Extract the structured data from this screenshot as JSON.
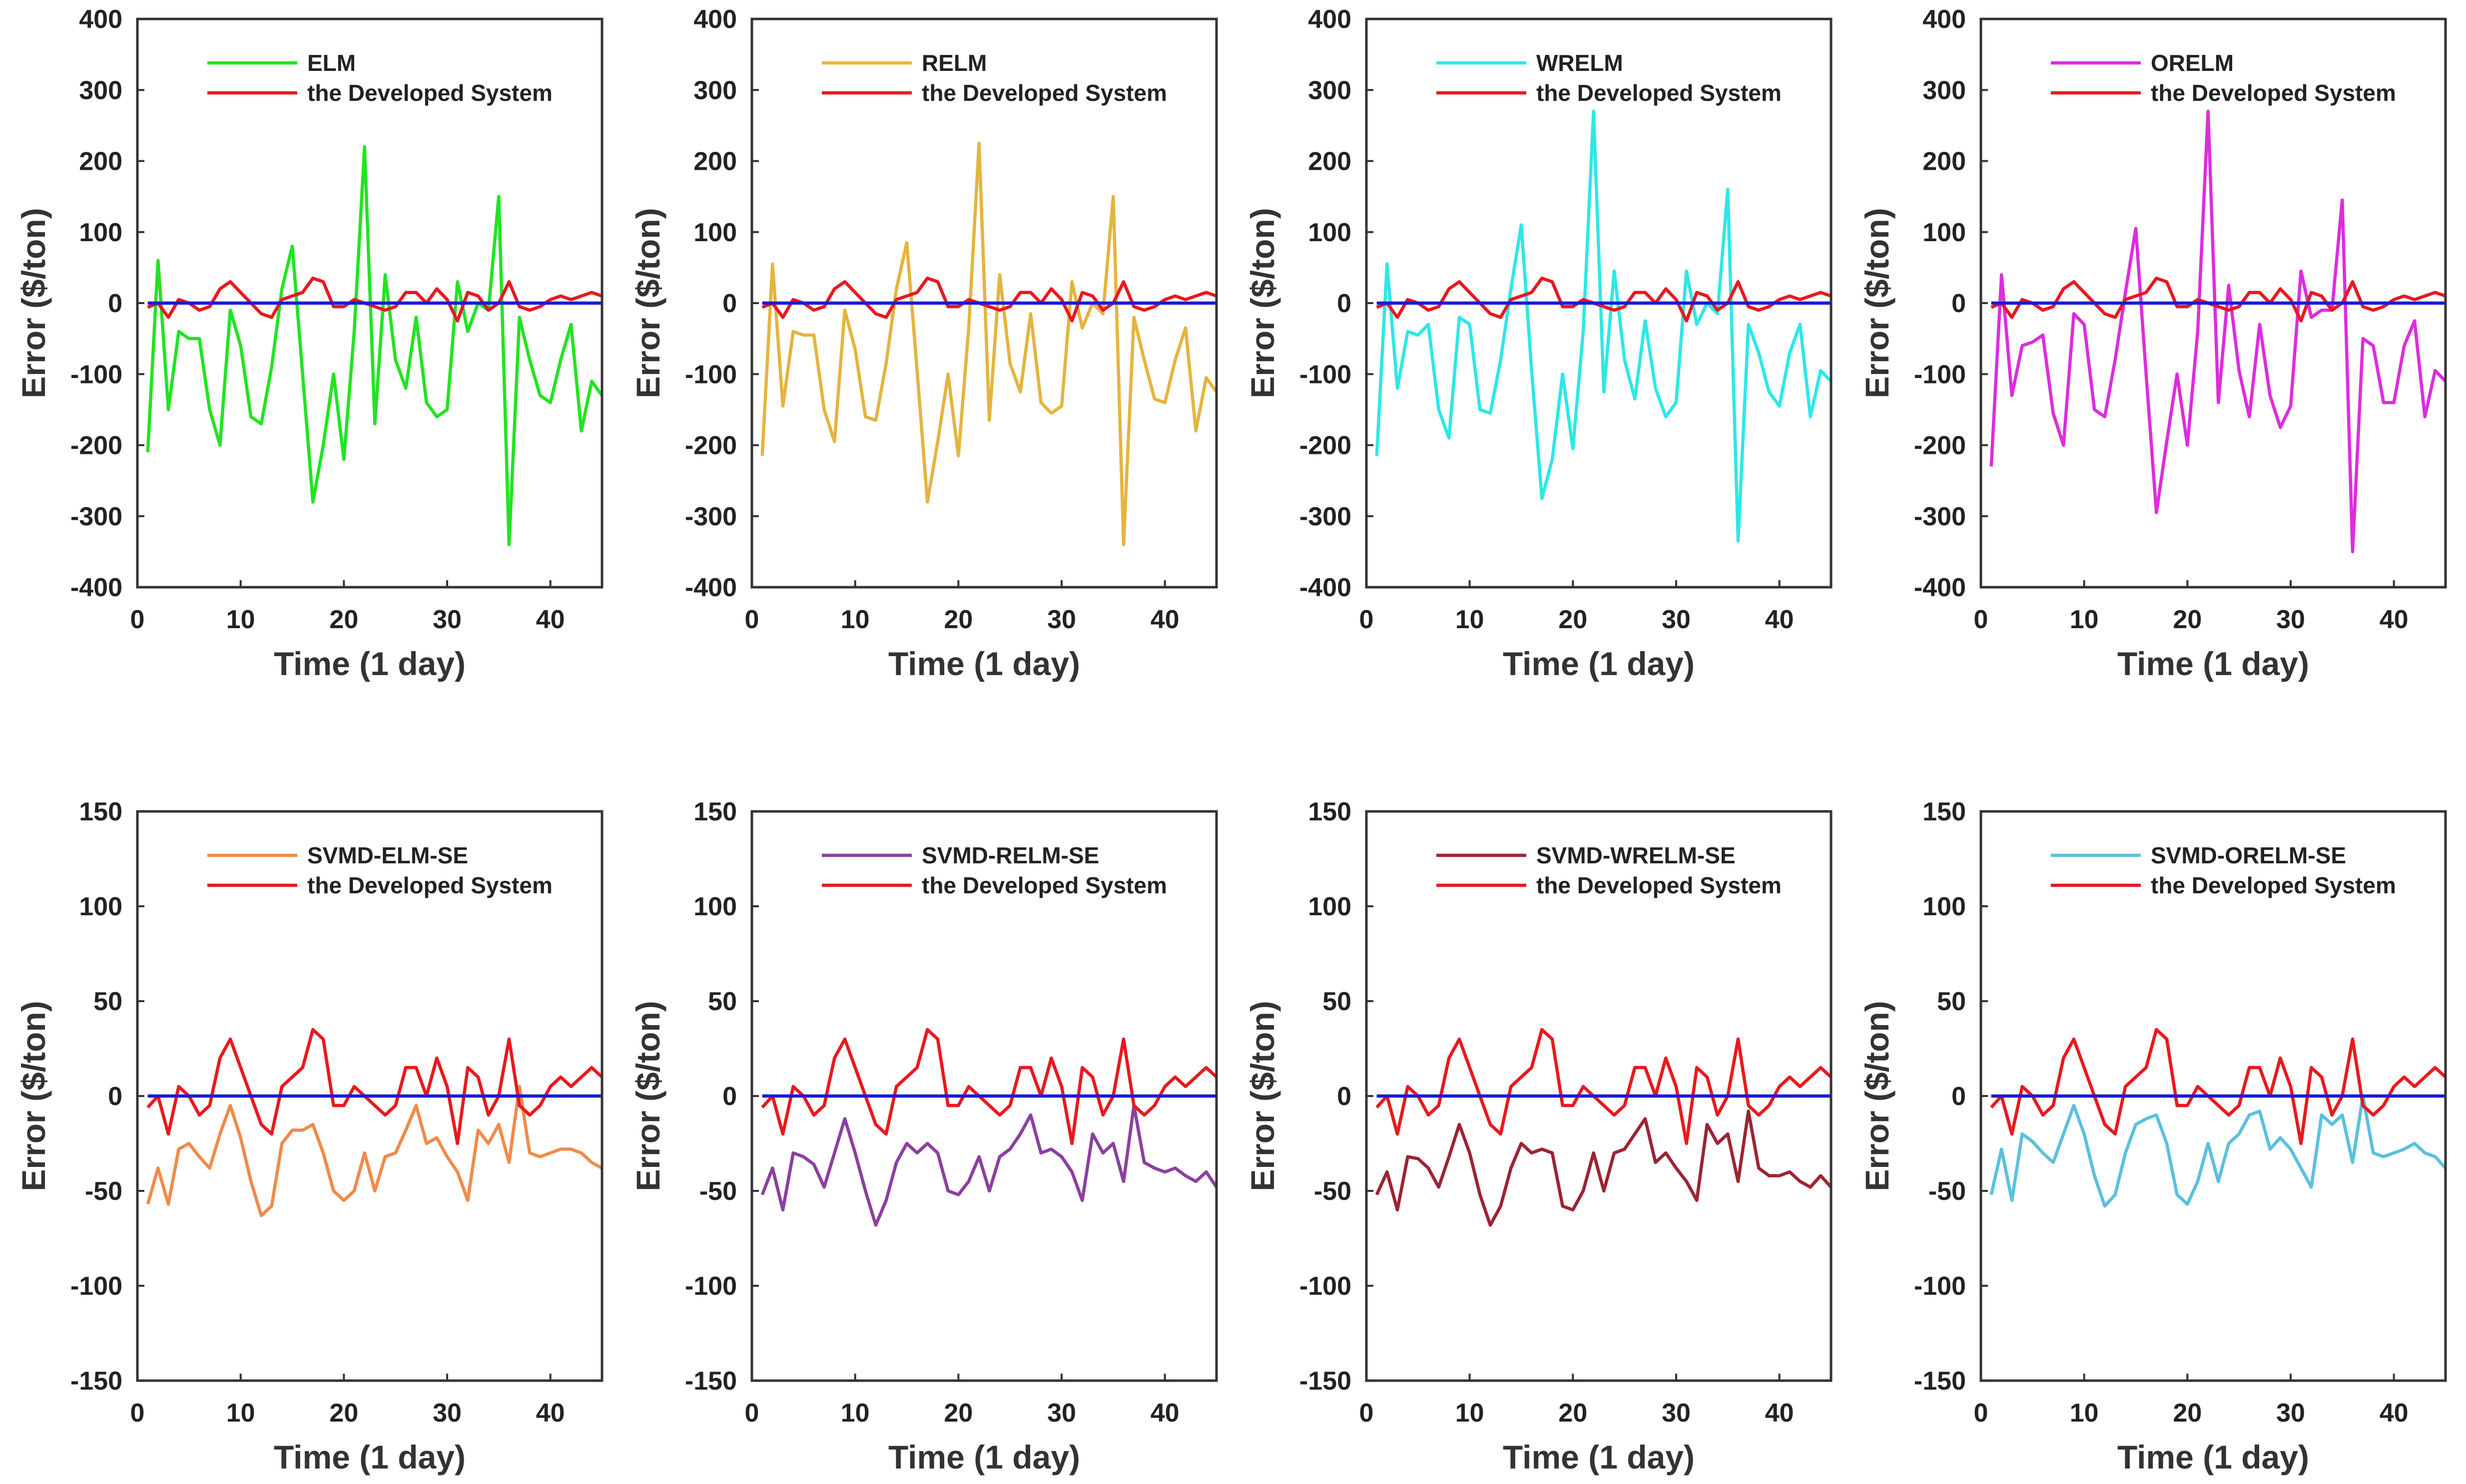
{
  "zero_line_color": "#1a1ad6",
  "developed_color": "#e8191d",
  "developed": [
    -6,
    0,
    -20,
    5,
    0,
    -10,
    -5,
    20,
    30,
    15,
    0,
    -15,
    -20,
    5,
    10,
    15,
    35,
    30,
    -5,
    -5,
    5,
    0,
    -5,
    -10,
    -5,
    15,
    15,
    0,
    20,
    5,
    -25,
    15,
    10,
    -10,
    0,
    30,
    -5,
    -10,
    -5,
    5,
    10,
    5,
    10,
    15,
    10
  ],
  "chart_data": [
    {
      "type": "line",
      "legend": [
        "ELM",
        "the Developed System"
      ],
      "xlabel": "Time (1 day)",
      "ylabel": "Error ($/ton)",
      "xlim": [
        0,
        45
      ],
      "ylim": [
        -400,
        400
      ],
      "xticks": [
        0,
        10,
        20,
        30,
        40
      ],
      "yticks": [
        400,
        300,
        200,
        100,
        0,
        -100,
        -200,
        -300,
        -400
      ],
      "color": "#22e322",
      "values": [
        -210,
        60,
        -150,
        -40,
        -50,
        -50,
        -150,
        -200,
        -10,
        -60,
        -160,
        -170,
        -90,
        20,
        80,
        -100,
        -280,
        -200,
        -100,
        -220,
        -40,
        220,
        -170,
        40,
        -80,
        -120,
        -20,
        -140,
        -160,
        -150,
        30,
        -40,
        0,
        -10,
        150,
        -340,
        -20,
        -80,
        -130,
        -140,
        -80,
        -30,
        -180,
        -110,
        -130
      ]
    },
    {
      "type": "line",
      "legend": [
        "RELM",
        "the Developed System"
      ],
      "xlabel": "Time (1 day)",
      "ylabel": "Error ($/ton)",
      "xlim": [
        0,
        45
      ],
      "ylim": [
        -400,
        400
      ],
      "xticks": [
        0,
        10,
        20,
        30,
        40
      ],
      "yticks": [
        400,
        300,
        200,
        100,
        0,
        -100,
        -200,
        -300,
        -400
      ],
      "color": "#e5b43f",
      "values": [
        -215,
        55,
        -145,
        -40,
        -45,
        -45,
        -150,
        -195,
        -10,
        -65,
        -160,
        -165,
        -85,
        20,
        85,
        -95,
        -280,
        -195,
        -100,
        -215,
        -35,
        225,
        -165,
        40,
        -85,
        -125,
        -15,
        -140,
        -155,
        -145,
        30,
        -35,
        0,
        -15,
        150,
        -340,
        -20,
        -80,
        -135,
        -140,
        -80,
        -35,
        -180,
        -105,
        -125
      ]
    },
    {
      "type": "line",
      "legend": [
        "WRELM",
        "the Developed System"
      ],
      "xlabel": "Time (1 day)",
      "ylabel": "Error ($/ton)",
      "xlim": [
        0,
        45
      ],
      "ylim": [
        -400,
        400
      ],
      "xticks": [
        0,
        10,
        20,
        30,
        40
      ],
      "yticks": [
        400,
        300,
        200,
        100,
        0,
        -100,
        -200,
        -300,
        -400
      ],
      "color": "#2ee7e7",
      "values": [
        -215,
        55,
        -120,
        -40,
        -45,
        -30,
        -150,
        -190,
        -20,
        -30,
        -150,
        -155,
        -80,
        20,
        110,
        -95,
        -275,
        -220,
        -100,
        -205,
        -40,
        270,
        -125,
        45,
        -80,
        -135,
        -25,
        -120,
        -160,
        -140,
        45,
        -30,
        0,
        -15,
        160,
        -335,
        -30,
        -70,
        -125,
        -145,
        -70,
        -30,
        -160,
        -95,
        -110
      ]
    },
    {
      "type": "line",
      "legend": [
        "ORELM",
        "the Developed System"
      ],
      "xlabel": "Time (1 day)",
      "ylabel": "Error ($/ton)",
      "xlim": [
        0,
        45
      ],
      "ylim": [
        -400,
        400
      ],
      "xticks": [
        0,
        10,
        20,
        30,
        40
      ],
      "yticks": [
        400,
        300,
        200,
        100,
        0,
        -100,
        -200,
        -300,
        -400
      ],
      "color": "#dc2ddc",
      "values": [
        -230,
        40,
        -130,
        -60,
        -55,
        -45,
        -155,
        -200,
        -15,
        -30,
        -150,
        -160,
        -80,
        15,
        105,
        -100,
        -295,
        -195,
        -100,
        -200,
        -40,
        270,
        -140,
        25,
        -95,
        -160,
        -30,
        -130,
        -175,
        -145,
        45,
        -20,
        -10,
        -10,
        145,
        -350,
        -50,
        -60,
        -140,
        -140,
        -60,
        -25,
        -160,
        -95,
        -110
      ]
    },
    {
      "type": "line",
      "legend": [
        "SVMD-ELM-SE",
        "the Developed System"
      ],
      "xlabel": "Time (1 day)",
      "ylabel": "Error ($/ton)",
      "xlim": [
        0,
        45
      ],
      "ylim": [
        -150,
        150
      ],
      "xticks": [
        0,
        10,
        20,
        30,
        40
      ],
      "yticks": [
        150,
        100,
        50,
        0,
        -50,
        -100,
        -150
      ],
      "color": "#ef8b4b",
      "values": [
        -57,
        -38,
        -57,
        -28,
        -25,
        -32,
        -38,
        -20,
        -5,
        -22,
        -45,
        -63,
        -58,
        -25,
        -18,
        -18,
        -15,
        -30,
        -50,
        -55,
        -50,
        -30,
        -50,
        -32,
        -30,
        -18,
        -5,
        -25,
        -22,
        -32,
        -40,
        -55,
        -18,
        -25,
        -15,
        -35,
        5,
        -30,
        -32,
        -30,
        -28,
        -28,
        -30,
        -35,
        -38
      ]
    },
    {
      "type": "line",
      "legend": [
        "SVMD-RELM-SE",
        "the Developed System"
      ],
      "xlabel": "Time (1 day)",
      "ylabel": "Error ($/ton)",
      "xlim": [
        0,
        45
      ],
      "ylim": [
        -150,
        150
      ],
      "xticks": [
        0,
        10,
        20,
        30,
        40
      ],
      "yticks": [
        150,
        100,
        50,
        0,
        -50,
        -100,
        -150
      ],
      "color": "#8c3fa0",
      "values": [
        -52,
        -38,
        -60,
        -30,
        -32,
        -36,
        -48,
        -30,
        -12,
        -30,
        -50,
        -68,
        -55,
        -35,
        -25,
        -30,
        -25,
        -30,
        -50,
        -52,
        -45,
        -32,
        -50,
        -32,
        -28,
        -20,
        -10,
        -30,
        -28,
        -32,
        -40,
        -55,
        -20,
        -30,
        -25,
        -45,
        -5,
        -35,
        -38,
        -40,
        -38,
        -42,
        -45,
        -40,
        -48
      ]
    },
    {
      "type": "line",
      "legend": [
        "SVMD-WRELM-SE",
        "the Developed System"
      ],
      "xlabel": "Time (1 day)",
      "ylabel": "Error ($/ton)",
      "xlim": [
        0,
        45
      ],
      "ylim": [
        -150,
        150
      ],
      "xticks": [
        0,
        10,
        20,
        30,
        40
      ],
      "yticks": [
        150,
        100,
        50,
        0,
        -50,
        -100,
        -150
      ],
      "color": "#9c2432",
      "values": [
        -52,
        -40,
        -60,
        -32,
        -33,
        -38,
        -48,
        -32,
        -15,
        -30,
        -52,
        -68,
        -58,
        -38,
        -25,
        -30,
        -28,
        -30,
        -58,
        -60,
        -50,
        -30,
        -50,
        -30,
        -28,
        -20,
        -12,
        -35,
        -30,
        -38,
        -45,
        -55,
        -15,
        -25,
        -20,
        -45,
        -8,
        -38,
        -42,
        -42,
        -40,
        -45,
        -48,
        -42,
        -48
      ]
    },
    {
      "type": "line",
      "legend": [
        "SVMD-ORELM-SE",
        "the Developed System"
      ],
      "xlabel": "Time (1 day)",
      "ylabel": "Error ($/ton)",
      "xlim": [
        0,
        45
      ],
      "ylim": [
        -150,
        150
      ],
      "xticks": [
        0,
        10,
        20,
        30,
        40
      ],
      "yticks": [
        150,
        100,
        50,
        0,
        -50,
        -100,
        -150
      ],
      "color": "#5bc0dd",
      "values": [
        -52,
        -28,
        -55,
        -20,
        -24,
        -30,
        -35,
        -20,
        -5,
        -20,
        -42,
        -58,
        -52,
        -30,
        -15,
        -12,
        -10,
        -25,
        -52,
        -57,
        -45,
        -25,
        -45,
        -25,
        -20,
        -10,
        -8,
        -28,
        -22,
        -28,
        -38,
        -48,
        -10,
        -15,
        -10,
        -35,
        0,
        -30,
        -32,
        -30,
        -28,
        -25,
        -30,
        -32,
        -38
      ]
    }
  ]
}
